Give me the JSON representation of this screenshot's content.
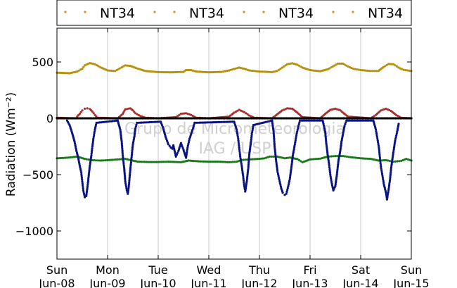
{
  "chart_data": {
    "type": "scatter",
    "ylabel": "Radiation (Wm⁻²)",
    "ylim": [
      -1250,
      800
    ],
    "yticks": [
      500,
      0,
      -500,
      -1000
    ],
    "ytick_labels": [
      "500",
      "0",
      "−500",
      "−1000"
    ],
    "xlim": [
      0,
      7
    ],
    "xticks": [
      0,
      1,
      2,
      3,
      4,
      5,
      6,
      7
    ],
    "xtick_labels": [
      [
        "Sun",
        "Jun-08"
      ],
      [
        "Mon",
        "Jun-09"
      ],
      [
        "Tue",
        "Jun-10"
      ],
      [
        "Wed",
        "Jun-11"
      ],
      [
        "Thu",
        "Jun-12"
      ],
      [
        "Fri",
        "Jun-13"
      ],
      [
        "Sat",
        "Jun-14"
      ],
      [
        "Sun",
        "Jun-15"
      ]
    ],
    "grid": "vertical",
    "legend": {
      "placement": "top",
      "entries": [
        {
          "label": "NT34",
          "color": "#d4902a"
        },
        {
          "label": "NT34",
          "color": "#d4902a"
        },
        {
          "label": "NT34",
          "color": "#d4902a"
        },
        {
          "label": "NT34",
          "color": "#d4902a"
        }
      ]
    },
    "watermark": [
      "Grupo de Micrometeorologia",
      "IAG / USP"
    ],
    "series": [
      {
        "color": "#b8900a",
        "points": [
          [
            0.0,
            405
          ],
          [
            0.25,
            400
          ],
          [
            0.4,
            415
          ],
          [
            0.5,
            440
          ],
          [
            0.55,
            470
          ],
          [
            0.65,
            490
          ],
          [
            0.75,
            480
          ],
          [
            0.85,
            455
          ],
          [
            1.0,
            425
          ],
          [
            1.15,
            420
          ],
          [
            1.25,
            445
          ],
          [
            1.35,
            470
          ],
          [
            1.45,
            465
          ],
          [
            1.6,
            440
          ],
          [
            1.75,
            420
          ],
          [
            2.0,
            410
          ],
          [
            2.25,
            408
          ],
          [
            2.5,
            412
          ],
          [
            2.55,
            428
          ],
          [
            2.65,
            428
          ],
          [
            2.75,
            415
          ],
          [
            3.0,
            408
          ],
          [
            3.25,
            412
          ],
          [
            3.4,
            425
          ],
          [
            3.5,
            438
          ],
          [
            3.6,
            450
          ],
          [
            3.7,
            440
          ],
          [
            3.8,
            425
          ],
          [
            4.0,
            415
          ],
          [
            4.25,
            410
          ],
          [
            4.35,
            420
          ],
          [
            4.45,
            450
          ],
          [
            4.55,
            480
          ],
          [
            4.65,
            488
          ],
          [
            4.75,
            475
          ],
          [
            4.85,
            450
          ],
          [
            5.0,
            428
          ],
          [
            5.2,
            418
          ],
          [
            5.35,
            435
          ],
          [
            5.45,
            460
          ],
          [
            5.55,
            485
          ],
          [
            5.65,
            485
          ],
          [
            5.75,
            460
          ],
          [
            5.85,
            440
          ],
          [
            6.0,
            428
          ],
          [
            6.2,
            420
          ],
          [
            6.35,
            420
          ],
          [
            6.45,
            455
          ],
          [
            6.55,
            482
          ],
          [
            6.65,
            480
          ],
          [
            6.75,
            450
          ],
          [
            6.85,
            430
          ],
          [
            7.0,
            420
          ]
        ]
      },
      {
        "color": "#a8312d",
        "points": [
          [
            0.0,
            5
          ],
          [
            0.35,
            0
          ],
          [
            0.4,
            15
          ],
          [
            0.45,
            40
          ],
          [
            0.5,
            70
          ],
          [
            0.55,
            85
          ],
          [
            0.6,
            88
          ],
          [
            0.65,
            82
          ],
          [
            0.7,
            60
          ],
          [
            0.75,
            30
          ],
          [
            0.8,
            5
          ],
          [
            1.2,
            0
          ],
          [
            1.3,
            40
          ],
          [
            1.35,
            80
          ],
          [
            1.45,
            88
          ],
          [
            1.5,
            70
          ],
          [
            1.55,
            45
          ],
          [
            1.65,
            20
          ],
          [
            1.75,
            5
          ],
          [
            2.0,
            0
          ],
          [
            2.35,
            10
          ],
          [
            2.45,
            40
          ],
          [
            2.55,
            45
          ],
          [
            2.65,
            30
          ],
          [
            2.75,
            5
          ],
          [
            3.0,
            0
          ],
          [
            3.4,
            15
          ],
          [
            3.5,
            50
          ],
          [
            3.6,
            75
          ],
          [
            3.7,
            55
          ],
          [
            3.8,
            25
          ],
          [
            3.9,
            5
          ],
          [
            4.25,
            0
          ],
          [
            4.35,
            35
          ],
          [
            4.45,
            70
          ],
          [
            4.55,
            88
          ],
          [
            4.65,
            85
          ],
          [
            4.75,
            50
          ],
          [
            4.85,
            10
          ],
          [
            5.2,
            0
          ],
          [
            5.3,
            40
          ],
          [
            5.4,
            75
          ],
          [
            5.5,
            85
          ],
          [
            5.6,
            70
          ],
          [
            5.65,
            50
          ],
          [
            5.75,
            15
          ],
          [
            6.2,
            0
          ],
          [
            6.3,
            30
          ],
          [
            6.4,
            70
          ],
          [
            6.5,
            85
          ],
          [
            6.6,
            65
          ],
          [
            6.7,
            30
          ],
          [
            6.8,
            5
          ],
          [
            7.0,
            0
          ]
        ]
      },
      {
        "color": "#000000",
        "points": [
          [
            0.0,
            0
          ],
          [
            1.0,
            0
          ],
          [
            2.0,
            0
          ],
          [
            3.0,
            0
          ],
          [
            4.0,
            0
          ],
          [
            5.0,
            0
          ],
          [
            6.0,
            0
          ],
          [
            7.0,
            0
          ]
        ]
      },
      {
        "color": "#1a7a1a",
        "points": [
          [
            0.0,
            -355
          ],
          [
            0.2,
            -350
          ],
          [
            0.4,
            -340
          ],
          [
            0.55,
            -360
          ],
          [
            0.7,
            -372
          ],
          [
            0.85,
            -375
          ],
          [
            1.0,
            -372
          ],
          [
            1.2,
            -365
          ],
          [
            1.35,
            -360
          ],
          [
            1.45,
            -370
          ],
          [
            1.6,
            -385
          ],
          [
            1.8,
            -388
          ],
          [
            2.0,
            -388
          ],
          [
            2.2,
            -385
          ],
          [
            2.45,
            -390
          ],
          [
            2.6,
            -375
          ],
          [
            2.8,
            -382
          ],
          [
            3.0,
            -385
          ],
          [
            3.2,
            -385
          ],
          [
            3.4,
            -390
          ],
          [
            3.55,
            -385
          ],
          [
            3.65,
            -370
          ],
          [
            3.8,
            -365
          ],
          [
            4.0,
            -360
          ],
          [
            4.1,
            -355
          ],
          [
            4.2,
            -340
          ],
          [
            4.35,
            -340
          ],
          [
            4.5,
            -355
          ],
          [
            4.6,
            -348
          ],
          [
            4.75,
            -362
          ],
          [
            4.85,
            -390
          ],
          [
            5.0,
            -365
          ],
          [
            5.2,
            -358
          ],
          [
            5.35,
            -340
          ],
          [
            5.5,
            -335
          ],
          [
            5.65,
            -335
          ],
          [
            5.8,
            -345
          ],
          [
            6.0,
            -355
          ],
          [
            6.2,
            -360
          ],
          [
            6.35,
            -375
          ],
          [
            6.5,
            -372
          ],
          [
            6.65,
            -385
          ],
          [
            6.8,
            -378
          ],
          [
            6.9,
            -360
          ],
          [
            7.0,
            -375
          ]
        ]
      },
      {
        "color": "#0a1480",
        "points": [
          [
            0.2,
            -20
          ],
          [
            0.25,
            -60
          ],
          [
            0.3,
            -130
          ],
          [
            0.35,
            -210
          ],
          [
            0.38,
            -280
          ],
          [
            0.42,
            -350
          ],
          [
            0.45,
            -420
          ],
          [
            0.48,
            -480
          ],
          [
            0.5,
            -560
          ],
          [
            0.52,
            -640
          ],
          [
            0.55,
            -700
          ],
          [
            0.58,
            -690
          ],
          [
            0.6,
            -620
          ],
          [
            0.62,
            -540
          ],
          [
            0.65,
            -420
          ],
          [
            0.68,
            -330
          ],
          [
            0.7,
            -250
          ],
          [
            0.72,
            -180
          ],
          [
            0.75,
            -100
          ],
          [
            0.78,
            -40
          ],
          [
            1.2,
            -20
          ],
          [
            1.25,
            -100
          ],
          [
            1.28,
            -210
          ],
          [
            1.3,
            -330
          ],
          [
            1.33,
            -450
          ],
          [
            1.35,
            -560
          ],
          [
            1.38,
            -640
          ],
          [
            1.4,
            -670
          ],
          [
            1.42,
            -600
          ],
          [
            1.45,
            -450
          ],
          [
            1.48,
            -320
          ],
          [
            1.5,
            -230
          ],
          [
            1.53,
            -160
          ],
          [
            1.55,
            -90
          ],
          [
            1.58,
            -40
          ],
          [
            2.05,
            -30
          ],
          [
            2.1,
            -90
          ],
          [
            2.15,
            -170
          ],
          [
            2.2,
            -230
          ],
          [
            2.25,
            -260
          ],
          [
            2.28,
            -270
          ],
          [
            2.3,
            -240
          ],
          [
            2.35,
            -340
          ],
          [
            2.4,
            -290
          ],
          [
            2.45,
            -220
          ],
          [
            2.5,
            -280
          ],
          [
            2.55,
            -350
          ],
          [
            2.58,
            -260
          ],
          [
            2.62,
            -180
          ],
          [
            2.68,
            -100
          ],
          [
            2.72,
            -40
          ],
          [
            3.5,
            -30
          ],
          [
            3.55,
            -100
          ],
          [
            3.58,
            -180
          ],
          [
            3.6,
            -260
          ],
          [
            3.62,
            -340
          ],
          [
            3.65,
            -420
          ],
          [
            3.68,
            -520
          ],
          [
            3.7,
            -600
          ],
          [
            3.72,
            -650
          ],
          [
            3.75,
            -560
          ],
          [
            3.78,
            -440
          ],
          [
            3.8,
            -320
          ],
          [
            3.83,
            -220
          ],
          [
            3.85,
            -140
          ],
          [
            3.88,
            -60
          ],
          [
            4.25,
            -20
          ],
          [
            4.28,
            -120
          ],
          [
            4.3,
            -250
          ],
          [
            4.33,
            -380
          ],
          [
            4.36,
            -480
          ],
          [
            4.4,
            -560
          ],
          [
            4.43,
            -620
          ],
          [
            4.46,
            -660
          ],
          [
            4.5,
            -680
          ],
          [
            4.53,
            -670
          ],
          [
            4.56,
            -620
          ],
          [
            4.6,
            -540
          ],
          [
            4.63,
            -440
          ],
          [
            4.66,
            -330
          ],
          [
            4.7,
            -230
          ],
          [
            4.73,
            -150
          ],
          [
            4.77,
            -70
          ],
          [
            4.8,
            -20
          ],
          [
            5.25,
            -20
          ],
          [
            5.3,
            -120
          ],
          [
            5.32,
            -220
          ],
          [
            5.35,
            -330
          ],
          [
            5.38,
            -420
          ],
          [
            5.4,
            -500
          ],
          [
            5.43,
            -580
          ],
          [
            5.46,
            -640
          ],
          [
            5.5,
            -600
          ],
          [
            5.53,
            -500
          ],
          [
            5.56,
            -380
          ],
          [
            5.6,
            -280
          ],
          [
            5.62,
            -210
          ],
          [
            5.65,
            -140
          ],
          [
            5.68,
            -70
          ],
          [
            5.72,
            -20
          ],
          [
            6.25,
            -20
          ],
          [
            6.3,
            -100
          ],
          [
            6.33,
            -180
          ],
          [
            6.36,
            -260
          ],
          [
            6.38,
            -350
          ],
          [
            6.4,
            -430
          ],
          [
            6.43,
            -510
          ],
          [
            6.46,
            -590
          ],
          [
            6.5,
            -660
          ],
          [
            6.52,
            -720
          ],
          [
            6.55,
            -640
          ],
          [
            6.58,
            -540
          ],
          [
            6.6,
            -450
          ],
          [
            6.62,
            -380
          ],
          [
            6.65,
            -290
          ],
          [
            6.68,
            -200
          ],
          [
            6.72,
            -120
          ],
          [
            6.75,
            -50
          ]
        ]
      }
    ]
  }
}
